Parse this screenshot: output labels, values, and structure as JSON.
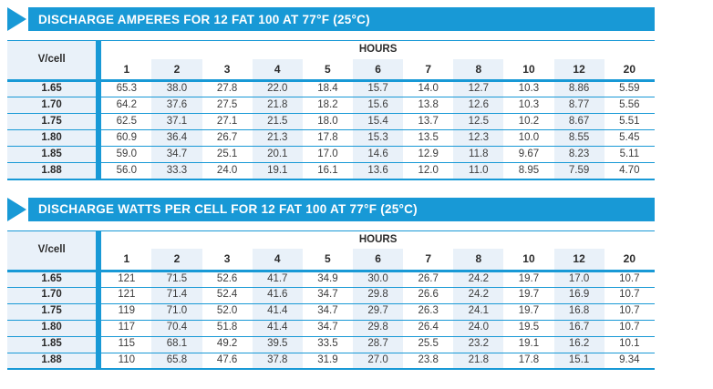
{
  "colors": {
    "accent": "#1899d6",
    "row_shade": "#e9f1f9",
    "header_text": "#ffffff",
    "body_text": "#3c3c3c"
  },
  "icons": {
    "section_marker": "right-arrow-triangle"
  },
  "tables": [
    {
      "title": "DISCHARGE AMPERES FOR 12 FAT 100 AT 77°F (25°C)",
      "corner_label": "V/cell",
      "hours_label": "HOURS",
      "hours": [
        "1",
        "2",
        "3",
        "4",
        "5",
        "6",
        "7",
        "8",
        "10",
        "12",
        "20"
      ],
      "rows": [
        {
          "vcell": "1.65",
          "values": [
            "65.3",
            "38.0",
            "27.8",
            "22.0",
            "18.4",
            "15.7",
            "14.0",
            "12.7",
            "10.3",
            "8.86",
            "5.59"
          ]
        },
        {
          "vcell": "1.70",
          "values": [
            "64.2",
            "37.6",
            "27.5",
            "21.8",
            "18.2",
            "15.6",
            "13.8",
            "12.6",
            "10.3",
            "8.77",
            "5.56"
          ]
        },
        {
          "vcell": "1.75",
          "values": [
            "62.5",
            "37.1",
            "27.1",
            "21.5",
            "18.0",
            "15.4",
            "13.7",
            "12.5",
            "10.2",
            "8.67",
            "5.51"
          ]
        },
        {
          "vcell": "1.80",
          "values": [
            "60.9",
            "36.4",
            "26.7",
            "21.3",
            "17.8",
            "15.3",
            "13.5",
            "12.3",
            "10.0",
            "8.55",
            "5.45"
          ]
        },
        {
          "vcell": "1.85",
          "values": [
            "59.0",
            "34.7",
            "25.1",
            "20.1",
            "17.0",
            "14.6",
            "12.9",
            "11.8",
            "9.67",
            "8.23",
            "5.11"
          ]
        },
        {
          "vcell": "1.88",
          "values": [
            "56.0",
            "33.3",
            "24.0",
            "19.1",
            "16.1",
            "13.6",
            "12.0",
            "11.0",
            "8.95",
            "7.59",
            "4.70"
          ]
        }
      ]
    },
    {
      "title": "DISCHARGE WATTS PER CELL FOR 12 FAT 100 AT 77°F (25°C)",
      "corner_label": "V/cell",
      "hours_label": "HOURS",
      "hours": [
        "1",
        "2",
        "3",
        "4",
        "5",
        "6",
        "7",
        "8",
        "10",
        "12",
        "20"
      ],
      "rows": [
        {
          "vcell": "1.65",
          "values": [
            "121",
            "71.5",
            "52.6",
            "41.7",
            "34.9",
            "30.0",
            "26.7",
            "24.2",
            "19.7",
            "17.0",
            "10.7"
          ]
        },
        {
          "vcell": "1.70",
          "values": [
            "121",
            "71.4",
            "52.4",
            "41.6",
            "34.7",
            "29.8",
            "26.6",
            "24.2",
            "19.7",
            "16.9",
            "10.7"
          ]
        },
        {
          "vcell": "1.75",
          "values": [
            "119",
            "71.0",
            "52.0",
            "41.4",
            "34.7",
            "29.7",
            "26.3",
            "24.1",
            "19.7",
            "16.8",
            "10.7"
          ]
        },
        {
          "vcell": "1.80",
          "values": [
            "117",
            "70.4",
            "51.8",
            "41.4",
            "34.7",
            "29.8",
            "26.4",
            "24.0",
            "19.5",
            "16.7",
            "10.7"
          ]
        },
        {
          "vcell": "1.85",
          "values": [
            "115",
            "68.1",
            "49.2",
            "39.5",
            "33.5",
            "28.7",
            "25.5",
            "23.2",
            "19.1",
            "16.2",
            "10.1"
          ]
        },
        {
          "vcell": "1.88",
          "values": [
            "110",
            "65.8",
            "47.6",
            "37.8",
            "31.9",
            "27.0",
            "23.8",
            "21.8",
            "17.8",
            "15.1",
            "9.34"
          ]
        }
      ]
    }
  ]
}
